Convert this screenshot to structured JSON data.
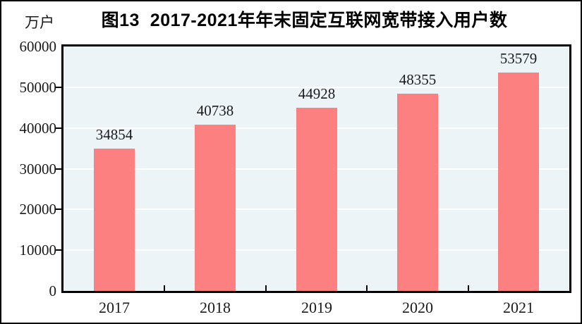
{
  "chart_data": {
    "type": "bar",
    "title": "图13  2017-2021年年末固定互联网宽带接入用户数",
    "unit_label": "万户",
    "categories": [
      "2017",
      "2018",
      "2019",
      "2020",
      "2021"
    ],
    "values": [
      34854,
      40738,
      44928,
      48355,
      53579
    ],
    "value_labels": [
      "34854",
      "40738",
      "44928",
      "48355",
      "53579"
    ],
    "xlabel": "",
    "ylabel": "万户",
    "ylim": [
      0,
      60000
    ],
    "yticks": [
      0,
      10000,
      20000,
      30000,
      40000,
      50000,
      60000
    ],
    "ytick_labels": [
      "0",
      "10000",
      "20000",
      "30000",
      "40000",
      "50000",
      "60000"
    ],
    "grid": true,
    "gridline_orientation": "horizontal",
    "legend_position": "none",
    "colors": {
      "bar": "#FC8080",
      "plot_background": "#EDF4F8",
      "gridline": "#FFFFFF",
      "axis_border": "#000000",
      "text": "#1A1A1A",
      "figure_background": "#FFFFFF",
      "figure_border": "#000000"
    }
  }
}
